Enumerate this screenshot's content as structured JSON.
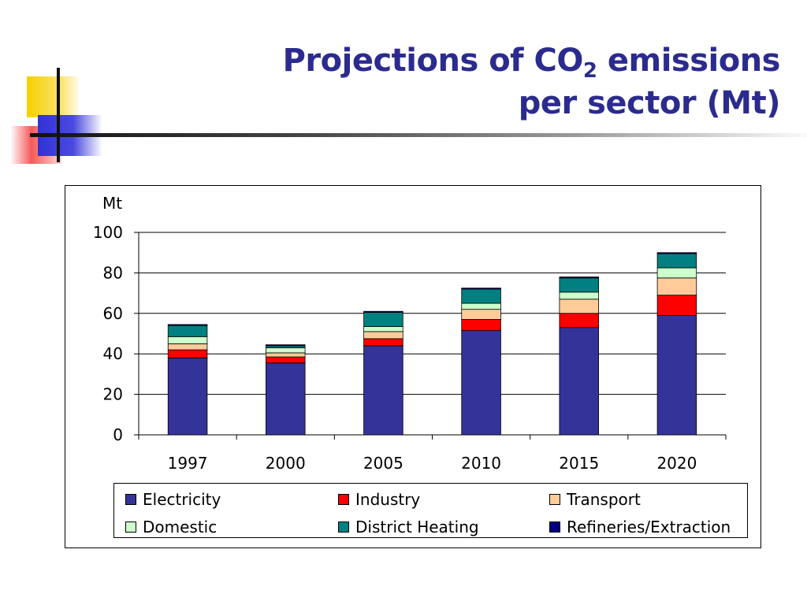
{
  "slide": {
    "title_part1": "Projections of CO",
    "title_sub": "2",
    "title_part2": " emissions",
    "title_line2": "per sector (Mt)"
  },
  "chart_data": {
    "type": "bar",
    "stacked": true,
    "unit_label": "Mt",
    "categories": [
      "1997",
      "2000",
      "2005",
      "2010",
      "2015",
      "2020"
    ],
    "ylim": [
      0,
      100
    ],
    "yticks": [
      0,
      20,
      40,
      60,
      80,
      100
    ],
    "grid": true,
    "legend_position": "bottom",
    "series": [
      {
        "name": "Electricity",
        "color": "#333399",
        "values": [
          38,
          35.5,
          44,
          51.5,
          53,
          59
        ]
      },
      {
        "name": "Industry",
        "color": "#ff0000",
        "values": [
          4,
          3,
          3.5,
          5.5,
          7,
          10
        ]
      },
      {
        "name": "Transport",
        "color": "#ffcc99",
        "values": [
          3,
          2,
          3.5,
          5,
          7,
          8.5
        ]
      },
      {
        "name": "Domestic",
        "color": "#ccffcc",
        "values": [
          3.5,
          2.5,
          2.5,
          3,
          3.5,
          5
        ]
      },
      {
        "name": "District Heating",
        "color": "#008080",
        "values": [
          5.5,
          1,
          7,
          7,
          7,
          7
        ]
      },
      {
        "name": "Refineries/Extraction",
        "color": "#000080",
        "values": [
          0.5,
          0.5,
          0.5,
          0.5,
          0.5,
          0.5
        ]
      }
    ]
  }
}
